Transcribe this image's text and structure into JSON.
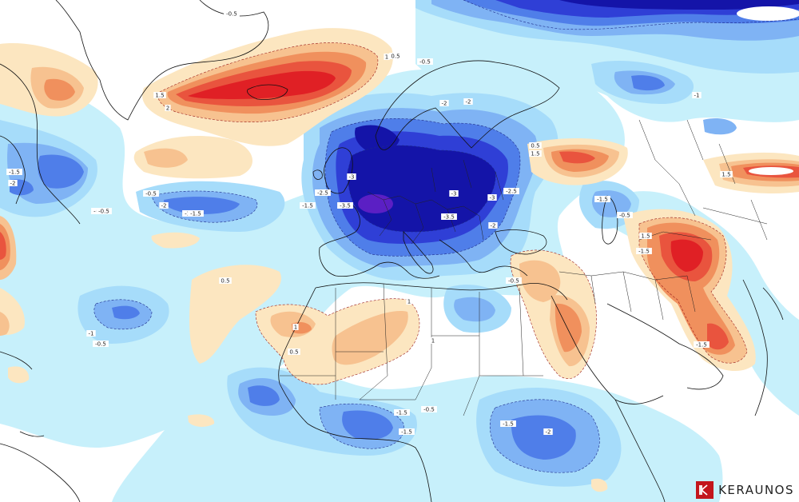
{
  "brand": {
    "name": "KERAUNOS",
    "accent": "#c3161c"
  },
  "legend_colors": {
    "neg_3": "#1414a8",
    "neg_2_5": "#2f3fd6",
    "neg_2": "#4f7ee9",
    "neg_1_5": "#7fb3f4",
    "neg_1": "#a6dcfa",
    "neg_0_5": "#c7f0fb",
    "pos_0_5": "#fce6c0",
    "pos_1": "#f7c290",
    "pos_1_5": "#f0905d",
    "pos_2": "#e9543e",
    "pos_2_5": "#e02025"
  },
  "contour_labels": [
    "-0.5",
    "-0.5",
    "-0.5",
    "1",
    "1.5",
    "2",
    "0.5",
    "-2",
    "-1.5",
    "-2",
    "-1",
    "-1.5",
    "-2",
    "-0.5",
    "-2",
    "-1.5",
    "-0.5",
    "-3",
    "-3",
    "-2.5",
    "-1.5",
    "-3.5",
    "-3",
    "-2.5",
    "-3.5",
    "-2",
    "1.5",
    "0.5",
    "-1.5",
    "-0.5",
    "-1.5",
    "1.5",
    "-0.5",
    "1",
    "-1",
    "-0.5",
    "1",
    "1",
    "0.5",
    "0.5",
    "-1.5",
    "-1.5",
    "-1.5",
    "-2",
    "-0.5",
    "1.5",
    "-1.5"
  ]
}
